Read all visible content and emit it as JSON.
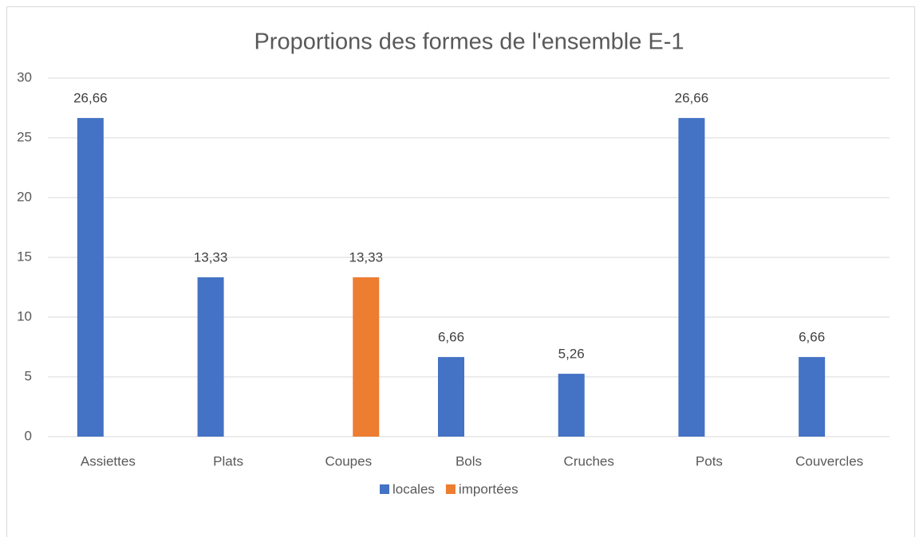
{
  "chart_data": {
    "type": "bar",
    "title": "Proportions des formes de l'ensemble E-1",
    "categories": [
      "Assiettes",
      "Plats",
      "Coupes",
      "Bols",
      "Cruches",
      "Pots",
      "Couvercles"
    ],
    "series": [
      {
        "name": "locales",
        "color": "#4472c4",
        "values": [
          26.66,
          13.33,
          null,
          6.66,
          5.26,
          26.66,
          6.66
        ],
        "value_labels": [
          "26,66",
          "13,33",
          null,
          "6,66",
          "5,26",
          "26,66",
          "6,66"
        ]
      },
      {
        "name": "importées",
        "color": "#ed7d31",
        "values": [
          null,
          null,
          13.33,
          null,
          null,
          null,
          null
        ],
        "value_labels": [
          null,
          null,
          "13,33",
          null,
          null,
          null,
          null
        ]
      }
    ],
    "ylim": [
      0,
      30
    ],
    "yticks": [
      0,
      5,
      10,
      15,
      20,
      25,
      30
    ],
    "grid": true,
    "legend": "bottom"
  }
}
